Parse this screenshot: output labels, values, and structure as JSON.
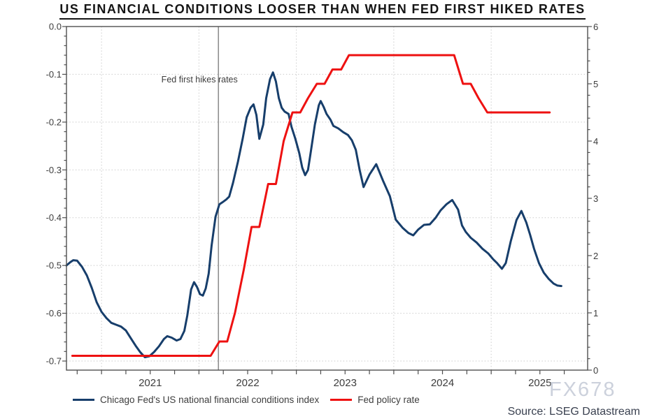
{
  "title": "US FINANCIAL CONDITIONS LOOSER THAN WHEN FED FIRST HIKED RATES",
  "footer": {
    "source": "Source: LSEG Datastream",
    "watermark": "FX678"
  },
  "chart_data": {
    "type": "line",
    "title": "US FINANCIAL CONDITIONS LOOSER THAN WHEN FED FIRST HIKED RATES",
    "grid": true,
    "legend_position": "bottom",
    "annotation": {
      "text": "Fed first hikes rates",
      "t": 2022.2
    },
    "x_axis": {
      "min": 2020.64,
      "max": 2025.99,
      "tick_start": 2020.75,
      "tick_end": 2025.75,
      "tick_step": 0.25,
      "year_labels": [
        "2021",
        "2022",
        "2023",
        "2024",
        "2025"
      ],
      "year_label_positions": [
        2021.5,
        2022.5,
        2023.5,
        2024.5,
        2025.5
      ],
      "gridline_years": [
        2021,
        2022,
        2023,
        2024,
        2025
      ]
    },
    "left_axis": {
      "min": -0.7,
      "max": 0.0,
      "major_step": 0.1,
      "minor_step": 0.02,
      "labels": [
        "0.0",
        "-0.1",
        "-0.2",
        "-0.3",
        "-0.4",
        "-0.5",
        "-0.6",
        "-0.7"
      ]
    },
    "right_axis": {
      "min": 0,
      "max": 6,
      "major_step": 1,
      "minor_step": 0.2,
      "labels": [
        "6",
        "5",
        "4",
        "3",
        "2",
        "1",
        "0"
      ]
    },
    "colors": {
      "nfci_line": "#173e6b",
      "policy_line": "#ee1111",
      "hike_line": "#8f8f8f",
      "gridline": "#cbcbcb",
      "axis": "#4f4f4f",
      "tick_text": "#3d3d3d"
    },
    "series": [
      {
        "name": "Chicago Fed's US national financial conditions index",
        "axis": "left",
        "color": "#173e6b",
        "points": [
          [
            2020.64,
            -0.5
          ],
          [
            2020.68,
            -0.493
          ],
          [
            2020.71,
            -0.489
          ],
          [
            2020.75,
            -0.49
          ],
          [
            2020.8,
            -0.503
          ],
          [
            2020.85,
            -0.521
          ],
          [
            2020.9,
            -0.547
          ],
          [
            2020.95,
            -0.577
          ],
          [
            2021.0,
            -0.597
          ],
          [
            2021.05,
            -0.61
          ],
          [
            2021.1,
            -0.62
          ],
          [
            2021.15,
            -0.624
          ],
          [
            2021.2,
            -0.628
          ],
          [
            2021.25,
            -0.636
          ],
          [
            2021.3,
            -0.652
          ],
          [
            2021.35,
            -0.668
          ],
          [
            2021.4,
            -0.682
          ],
          [
            2021.445,
            -0.692
          ],
          [
            2021.49,
            -0.69
          ],
          [
            2021.54,
            -0.681
          ],
          [
            2021.59,
            -0.669
          ],
          [
            2021.64,
            -0.654
          ],
          [
            2021.675,
            -0.648
          ],
          [
            2021.72,
            -0.651
          ],
          [
            2021.77,
            -0.657
          ],
          [
            2021.81,
            -0.654
          ],
          [
            2021.85,
            -0.637
          ],
          [
            2021.88,
            -0.605
          ],
          [
            2021.92,
            -0.55
          ],
          [
            2021.95,
            -0.535
          ],
          [
            2021.98,
            -0.545
          ],
          [
            2022.01,
            -0.56
          ],
          [
            2022.04,
            -0.563
          ],
          [
            2022.07,
            -0.548
          ],
          [
            2022.1,
            -0.517
          ],
          [
            2022.13,
            -0.458
          ],
          [
            2022.17,
            -0.398
          ],
          [
            2022.21,
            -0.372
          ],
          [
            2022.24,
            -0.368
          ],
          [
            2022.28,
            -0.362
          ],
          [
            2022.31,
            -0.356
          ],
          [
            2022.35,
            -0.327
          ],
          [
            2022.4,
            -0.283
          ],
          [
            2022.45,
            -0.234
          ],
          [
            2022.49,
            -0.19
          ],
          [
            2022.53,
            -0.17
          ],
          [
            2022.56,
            -0.163
          ],
          [
            2022.59,
            -0.185
          ],
          [
            2022.62,
            -0.235
          ],
          [
            2022.66,
            -0.205
          ],
          [
            2022.69,
            -0.15
          ],
          [
            2022.73,
            -0.11
          ],
          [
            2022.76,
            -0.096
          ],
          [
            2022.79,
            -0.115
          ],
          [
            2022.82,
            -0.15
          ],
          [
            2022.85,
            -0.17
          ],
          [
            2022.88,
            -0.178
          ],
          [
            2022.92,
            -0.183
          ],
          [
            2022.95,
            -0.21
          ],
          [
            2022.99,
            -0.235
          ],
          [
            2023.03,
            -0.265
          ],
          [
            2023.06,
            -0.295
          ],
          [
            2023.09,
            -0.311
          ],
          [
            2023.12,
            -0.3
          ],
          [
            2023.15,
            -0.26
          ],
          [
            2023.19,
            -0.205
          ],
          [
            2023.23,
            -0.165
          ],
          [
            2023.25,
            -0.156
          ],
          [
            2023.28,
            -0.168
          ],
          [
            2023.31,
            -0.183
          ],
          [
            2023.35,
            -0.195
          ],
          [
            2023.38,
            -0.208
          ],
          [
            2023.43,
            -0.213
          ],
          [
            2023.48,
            -0.221
          ],
          [
            2023.53,
            -0.227
          ],
          [
            2023.57,
            -0.238
          ],
          [
            2023.61,
            -0.258
          ],
          [
            2023.65,
            -0.3
          ],
          [
            2023.69,
            -0.336
          ],
          [
            2023.75,
            -0.31
          ],
          [
            2023.82,
            -0.288
          ],
          [
            2023.89,
            -0.323
          ],
          [
            2023.96,
            -0.355
          ],
          [
            2024.02,
            -0.404
          ],
          [
            2024.09,
            -0.421
          ],
          [
            2024.15,
            -0.432
          ],
          [
            2024.2,
            -0.437
          ],
          [
            2024.25,
            -0.425
          ],
          [
            2024.31,
            -0.415
          ],
          [
            2024.37,
            -0.414
          ],
          [
            2024.43,
            -0.4
          ],
          [
            2024.48,
            -0.385
          ],
          [
            2024.54,
            -0.372
          ],
          [
            2024.6,
            -0.363
          ],
          [
            2024.66,
            -0.383
          ],
          [
            2024.7,
            -0.416
          ],
          [
            2024.74,
            -0.43
          ],
          [
            2024.79,
            -0.442
          ],
          [
            2024.85,
            -0.452
          ],
          [
            2024.91,
            -0.465
          ],
          [
            2024.97,
            -0.475
          ],
          [
            2025.02,
            -0.487
          ],
          [
            2025.06,
            -0.495
          ],
          [
            2025.11,
            -0.507
          ],
          [
            2025.15,
            -0.495
          ],
          [
            2025.2,
            -0.45
          ],
          [
            2025.26,
            -0.405
          ],
          [
            2025.31,
            -0.386
          ],
          [
            2025.36,
            -0.41
          ],
          [
            2025.4,
            -0.436
          ],
          [
            2025.44,
            -0.465
          ],
          [
            2025.49,
            -0.495
          ],
          [
            2025.54,
            -0.515
          ],
          [
            2025.59,
            -0.528
          ],
          [
            2025.64,
            -0.538
          ],
          [
            2025.68,
            -0.542
          ],
          [
            2025.72,
            -0.543
          ]
        ]
      },
      {
        "name": "Fed policy rate",
        "axis": "right",
        "color": "#ee1111",
        "points": [
          [
            2020.7,
            0.25
          ],
          [
            2022.12,
            0.25
          ],
          [
            2022.21,
            0.5
          ],
          [
            2022.29,
            0.5
          ],
          [
            2022.37,
            1.0
          ],
          [
            2022.46,
            1.75
          ],
          [
            2022.54,
            2.5
          ],
          [
            2022.62,
            2.5
          ],
          [
            2022.71,
            3.25
          ],
          [
            2022.79,
            3.25
          ],
          [
            2022.87,
            4.0
          ],
          [
            2022.96,
            4.5
          ],
          [
            2023.04,
            4.5
          ],
          [
            2023.12,
            4.75
          ],
          [
            2023.21,
            5.0
          ],
          [
            2023.29,
            5.0
          ],
          [
            2023.37,
            5.25
          ],
          [
            2023.46,
            5.25
          ],
          [
            2023.54,
            5.5
          ],
          [
            2024.62,
            5.5
          ],
          [
            2024.71,
            5.0
          ],
          [
            2024.79,
            5.0
          ],
          [
            2024.87,
            4.75
          ],
          [
            2024.96,
            4.5
          ],
          [
            2025.6,
            4.5
          ]
        ]
      }
    ]
  }
}
